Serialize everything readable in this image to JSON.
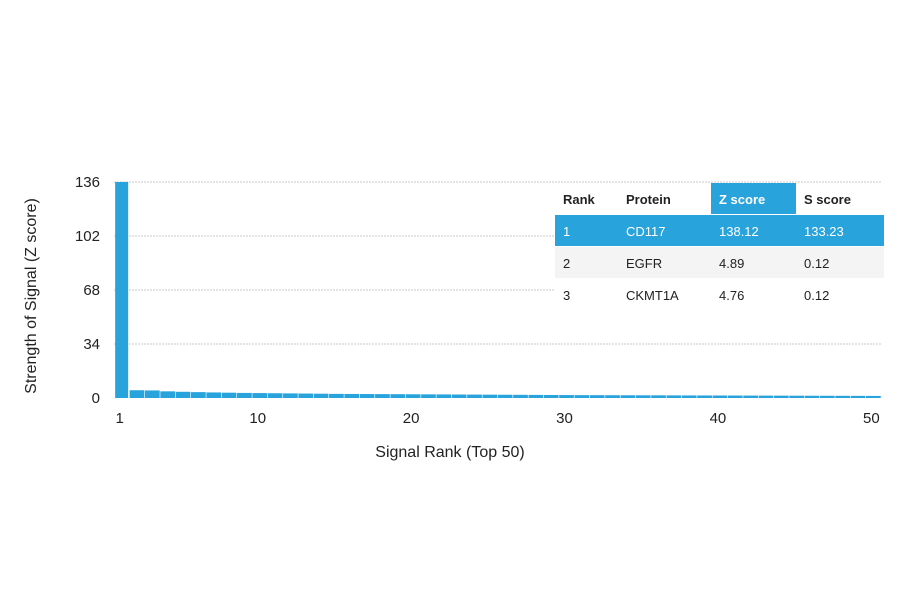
{
  "chart_data": {
    "type": "bar",
    "xlabel": "Signal Rank (Top 50)",
    "ylabel": "Strength of Signal (Z score)",
    "yticks": [
      0,
      34,
      68,
      102,
      136
    ],
    "xticks": [
      1,
      10,
      20,
      30,
      40,
      50
    ],
    "ylim": [
      0,
      136
    ],
    "xlim": [
      1,
      50
    ],
    "grid": true,
    "bar_color": "#29a3dc",
    "values": [
      138.12,
      4.89,
      4.76,
      4.2,
      3.9,
      3.7,
      3.5,
      3.35,
      3.2,
      3.1,
      3.0,
      2.9,
      2.8,
      2.7,
      2.6,
      2.55,
      2.5,
      2.45,
      2.4,
      2.35,
      2.3,
      2.25,
      2.2,
      2.15,
      2.1,
      2.05,
      2.0,
      1.95,
      1.9,
      1.85,
      1.8,
      1.78,
      1.75,
      1.72,
      1.7,
      1.68,
      1.65,
      1.62,
      1.6,
      1.58,
      1.55,
      1.52,
      1.5,
      1.48,
      1.45,
      1.42,
      1.4,
      1.38,
      1.35,
      1.3
    ],
    "table": {
      "highlight_color": "#29a3dc",
      "columns": [
        "Rank",
        "Protein",
        "Z score",
        "S score"
      ],
      "highlight_columns": [
        2
      ],
      "rows": [
        [
          "1",
          "CD117",
          "138.12",
          "133.23"
        ],
        [
          "2",
          "EGFR",
          "4.89",
          "0.12"
        ],
        [
          "3",
          "CKMT1A",
          "4.76",
          "0.12"
        ]
      ],
      "highlight_row": 0
    }
  }
}
